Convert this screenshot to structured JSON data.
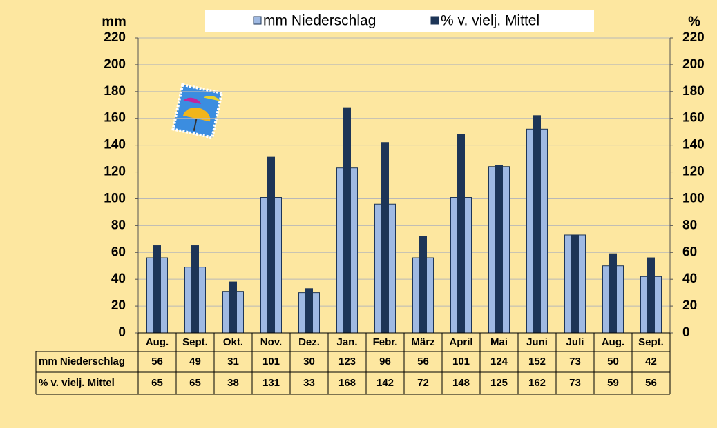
{
  "chart_data": {
    "type": "bar",
    "y_label": "mm",
    "y2_label": "%",
    "categories": [
      "Aug.",
      "Sept.",
      "Okt.",
      "Nov.",
      "Dez.",
      "Jan.",
      "Febr.",
      "März",
      "April",
      "Mai",
      "Juni",
      "Juli",
      "Aug.",
      "Sept."
    ],
    "series": [
      {
        "name": "mm Niederschlag",
        "color": "#9fb9e2",
        "values": [
          56,
          49,
          31,
          101,
          30,
          123,
          96,
          56,
          101,
          124,
          152,
          73,
          50,
          42
        ]
      },
      {
        "name": "% v. vielj. Mittel",
        "color": "#1d3557",
        "axis": "y2",
        "values": [
          65,
          65,
          38,
          131,
          33,
          168,
          142,
          72,
          148,
          125,
          162,
          73,
          59,
          56
        ]
      }
    ],
    "ylim": [
      0,
      220
    ],
    "yticks": [
      0,
      20,
      40,
      60,
      80,
      100,
      120,
      140,
      160,
      180,
      200,
      220
    ],
    "y2lim": [
      0,
      220
    ],
    "y2ticks": [
      0,
      20,
      40,
      60,
      80,
      100,
      120,
      140,
      160,
      180,
      200,
      220
    ],
    "grid": true,
    "legend": "top"
  }
}
